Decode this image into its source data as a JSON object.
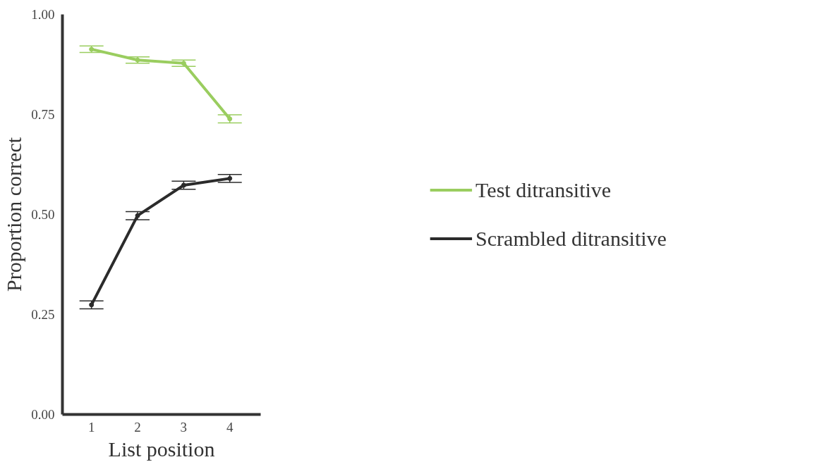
{
  "chart_data": {
    "type": "line",
    "xlabel": "List position",
    "ylabel": "Proportion correct",
    "x": [
      1,
      2,
      3,
      4
    ],
    "series": [
      {
        "name": "Test ditransitive",
        "color": "#9acd5f",
        "values": [
          0.913,
          0.886,
          0.878,
          0.739
        ],
        "errors": [
          0.008,
          0.008,
          0.008,
          0.01
        ]
      },
      {
        "name": "Scrambled ditransitive",
        "color": "#2b2b2b",
        "values": [
          0.274,
          0.497,
          0.573,
          0.59
        ],
        "errors": [
          0.01,
          0.01,
          0.01,
          0.01
        ]
      }
    ],
    "xlim": [
      0.37,
      4.67
    ],
    "ylim": [
      0,
      1
    ],
    "xticks": [
      1,
      2,
      3,
      4
    ],
    "yticks": [
      {
        "value": 0,
        "label": "0.00"
      },
      {
        "value": 0.25,
        "label": "0.25"
      },
      {
        "value": 0.5,
        "label": "0.50"
      },
      {
        "value": 0.75,
        "label": "0.75"
      },
      {
        "value": 1,
        "label": "1.00"
      }
    ],
    "grid": false,
    "legend": "right",
    "marker": "circle",
    "line_style": "solid"
  }
}
